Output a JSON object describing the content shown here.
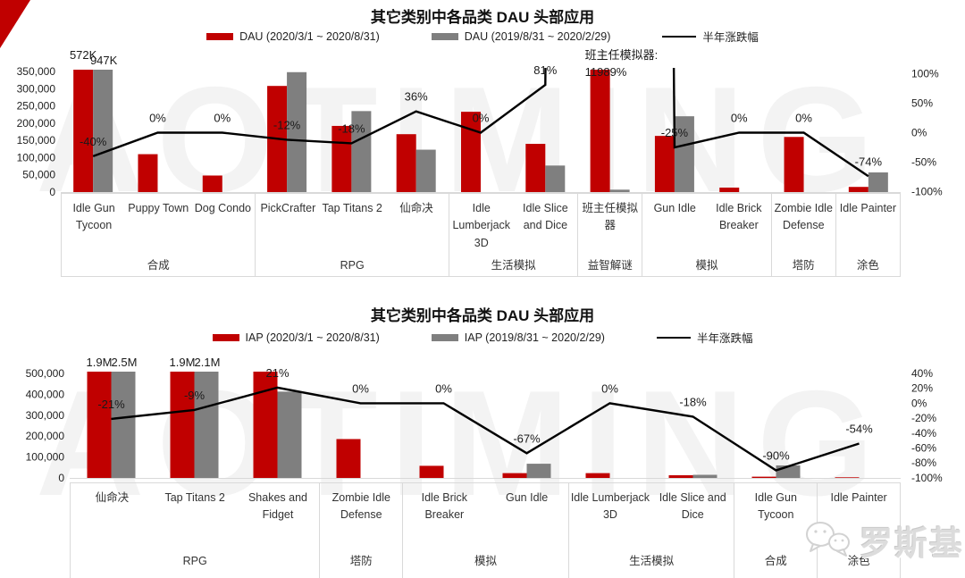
{
  "colors": {
    "current_bar": "#C00000",
    "previous_bar": "#7F7F7F",
    "trend_line": "#000000",
    "table_border": "#D9D9D9",
    "watermark": "#F3F3F3",
    "logo_gray": "#DCDCDC"
  },
  "watermark": {
    "text": "AOTIMING"
  },
  "logo": {
    "text": "罗斯基",
    "icon": "wechat-icon"
  },
  "chart_data": [
    {
      "type": "bar",
      "combo": "grouped bars + percent line, dual axis",
      "title": "其它类别中各品类 DAU 头部应用",
      "legend": [
        "DAU (2020/3/1 ~ 2020/8/31)",
        "DAU (2019/8/31 ~ 2020/2/29)",
        "半年涨跌幅"
      ],
      "categories": [
        "Idle Gun Tycoon",
        "Puppy Town",
        "Dog Condo",
        "PickCrafter",
        "Tap Titans 2",
        "仙命决",
        "Idle Lumberjack 3D",
        "Idle Slice and Dice",
        "班主任模拟器",
        "Gun Idle",
        "Idle Brick Breaker",
        "Zombie Idle Defense",
        "Idle Painter"
      ],
      "groups": [
        {
          "label": "合成",
          "span": 3
        },
        {
          "label": "RPG",
          "span": 3
        },
        {
          "label": "生活模拟",
          "span": 2
        },
        {
          "label": "益智解谜",
          "span": 1
        },
        {
          "label": "模拟",
          "span": 2
        },
        {
          "label": "塔防",
          "span": 1
        },
        {
          "label": "涂色",
          "span": 1
        }
      ],
      "series": [
        {
          "name": "DAU (2020/3/1 ~ 2020/8/31)",
          "type": "bar",
          "values": [
            350000,
            110000,
            48000,
            308000,
            192000,
            168000,
            233000,
            140000,
            350000,
            163000,
            13000,
            160000,
            15000
          ]
        },
        {
          "name": "DAU (2019/8/31 ~ 2020/2/29)",
          "type": "bar",
          "values": [
            350000,
            0,
            0,
            348000,
            235000,
            123000,
            0,
            77000,
            7000,
            220000,
            0,
            0,
            57000
          ]
        },
        {
          "name": "半年涨跌幅",
          "type": "line",
          "axis": "right",
          "values_percent": [
            -40,
            0,
            0,
            -12,
            -18,
            36,
            0,
            81,
            11989,
            -25,
            0,
            0,
            -74
          ]
        }
      ],
      "point_labels": [
        "-40%",
        "0%",
        "0%",
        "-12%",
        "-18%",
        "36%",
        "0%",
        "81%",
        "",
        "-25%",
        "0%",
        "0%",
        "-74%"
      ],
      "bar_value_labels": [
        {
          "category_index": 0,
          "current": "572K",
          "previous": "947K"
        }
      ],
      "annotation": {
        "category_index": 8,
        "lines": [
          "班主任模拟器:",
          "11989%"
        ]
      },
      "y_left": {
        "min": 0,
        "max": 350000,
        "step": 50000
      },
      "y_right": {
        "min": -100,
        "max": 100,
        "step": 50,
        "unit": "%"
      }
    },
    {
      "type": "bar",
      "combo": "grouped bars + percent line, dual axis",
      "title": "其它类别中各品类 DAU 头部应用",
      "legend": [
        "IAP (2020/3/1 ~ 2020/8/31)",
        "IAP (2019/8/31 ~ 2020/2/29)",
        "半年涨跌幅"
      ],
      "categories": [
        "仙命决",
        "Tap Titans 2",
        "Shakes and Fidget",
        "Zombie Idle Defense",
        "Idle Brick Breaker",
        "Gun Idle",
        "Idle Lumberjack 3D",
        "Idle Slice and Dice",
        "Idle Gun Tycoon",
        "Idle Painter"
      ],
      "groups": [
        {
          "label": "RPG",
          "span": 3
        },
        {
          "label": "塔防",
          "span": 1
        },
        {
          "label": "模拟",
          "span": 2
        },
        {
          "label": "生活模拟",
          "span": 2
        },
        {
          "label": "合成",
          "span": 1
        },
        {
          "label": "涂色",
          "span": 1
        }
      ],
      "series": [
        {
          "name": "IAP (2020/3/1 ~ 2020/8/31)",
          "type": "bar",
          "values": [
            500000,
            500000,
            500000,
            186000,
            58000,
            23000,
            23000,
            13000,
            6000,
            3000
          ]
        },
        {
          "name": "IAP (2019/8/31 ~ 2020/2/29)",
          "type": "bar",
          "values": [
            500000,
            500000,
            413000,
            0,
            0,
            68000,
            0,
            15000,
            60000,
            0
          ]
        },
        {
          "name": "半年涨跌幅",
          "type": "line",
          "axis": "right",
          "values_percent": [
            -21,
            -9,
            21,
            0,
            0,
            -67,
            0,
            -18,
            -90,
            -54
          ]
        }
      ],
      "point_labels": [
        "-21%",
        "-9%",
        "21%",
        "0%",
        "0%",
        "-67%",
        "0%",
        "-18%",
        "-90%",
        "-54%"
      ],
      "bar_value_labels": [
        {
          "category_index": 0,
          "current": "1.9M",
          "previous": "2.5M"
        },
        {
          "category_index": 1,
          "current": "1.9M",
          "previous": "2.1M"
        }
      ],
      "annotation": null,
      "y_left": {
        "min": 0,
        "max": 500000,
        "step": 100000
      },
      "y_right": {
        "min": -100,
        "max": 40,
        "step": 20,
        "unit": "%"
      }
    }
  ]
}
